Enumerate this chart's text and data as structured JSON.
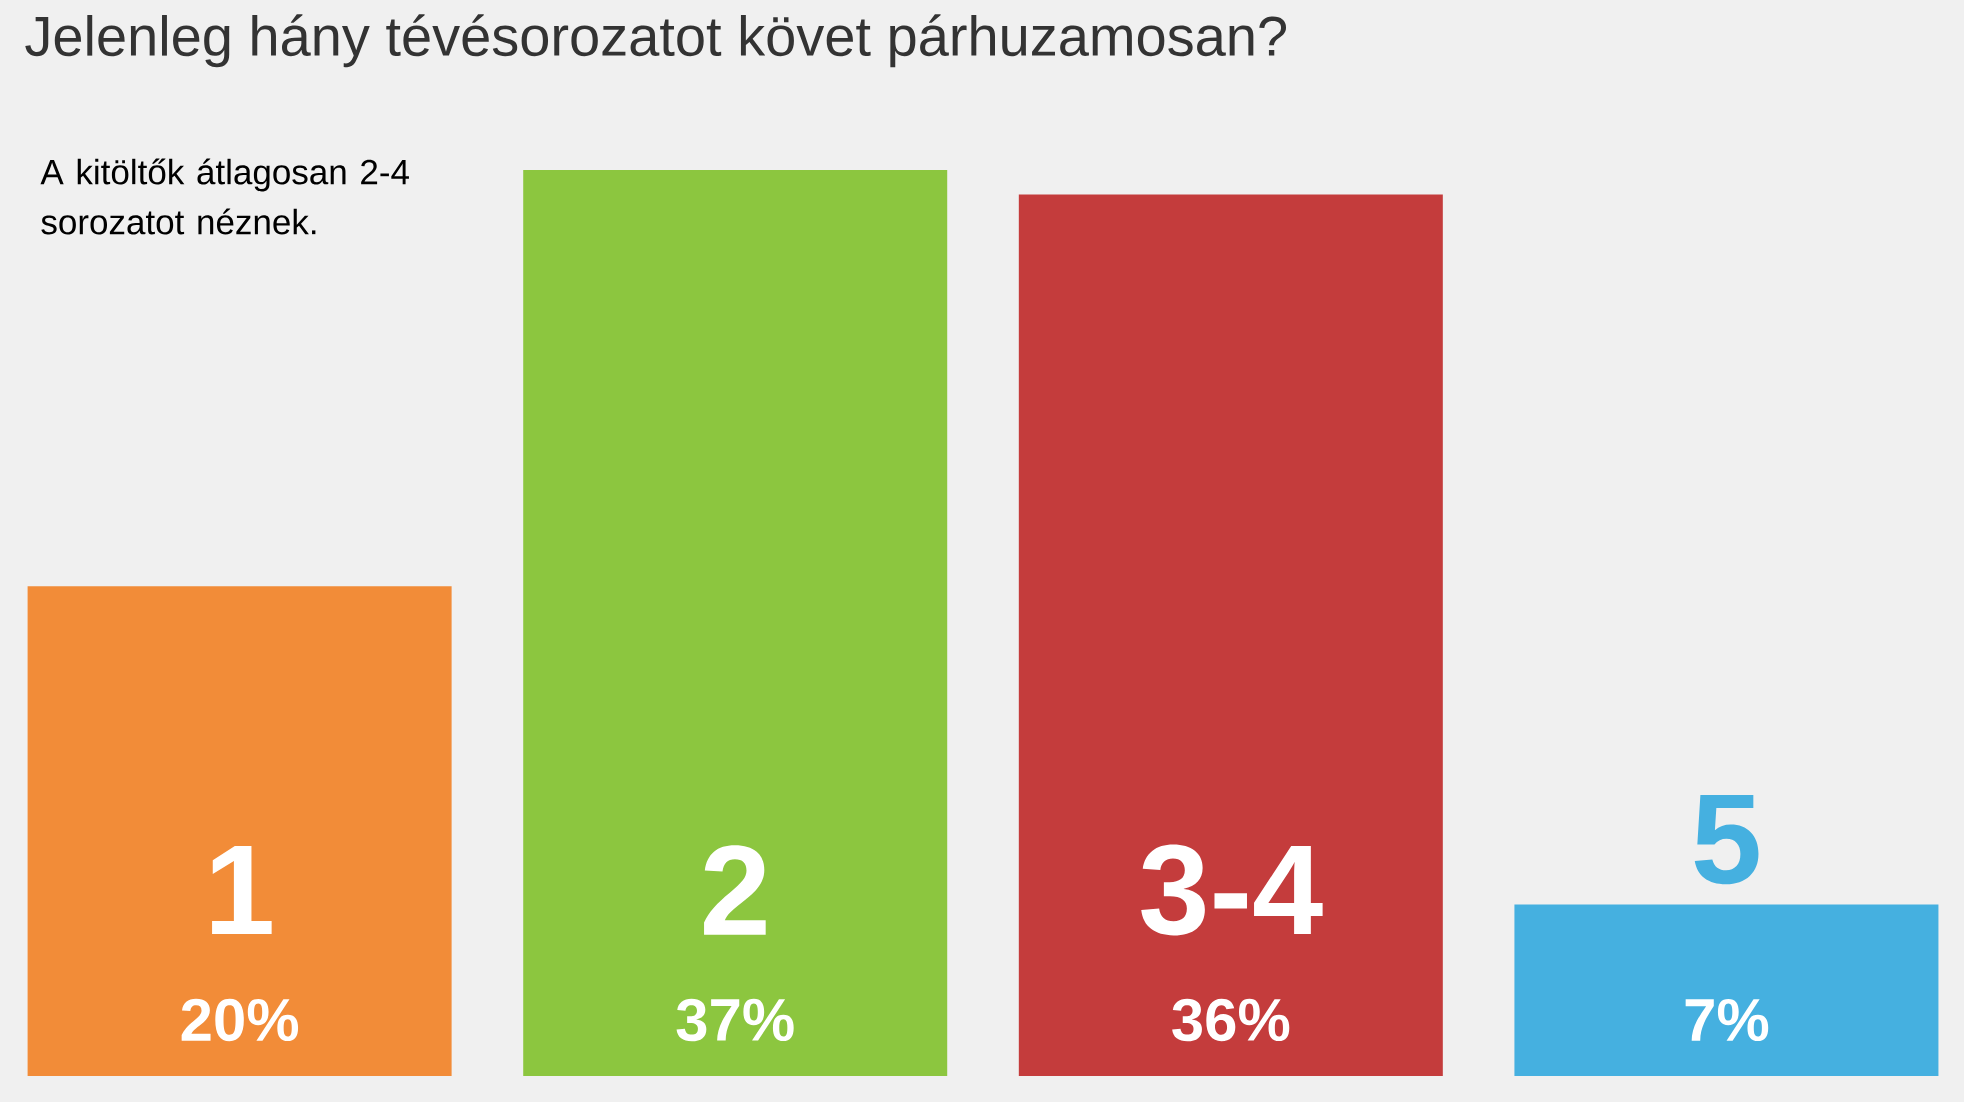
{
  "chart_data": {
    "type": "bar",
    "title": "Jelenleg hány tévésorozatot követ párhuzamosan?",
    "categories": [
      "1",
      "2",
      "3-4",
      "5"
    ],
    "values": [
      20,
      37,
      36,
      7
    ],
    "value_labels": [
      "20%",
      "37%",
      "36%",
      "7%"
    ],
    "colors": [
      "#f28c38",
      "#8cc63f",
      "#c43c3c",
      "#45b0e0"
    ],
    "annotations": [
      "A kitöltők átlagosan 2-4 sorozatot néznek."
    ]
  }
}
